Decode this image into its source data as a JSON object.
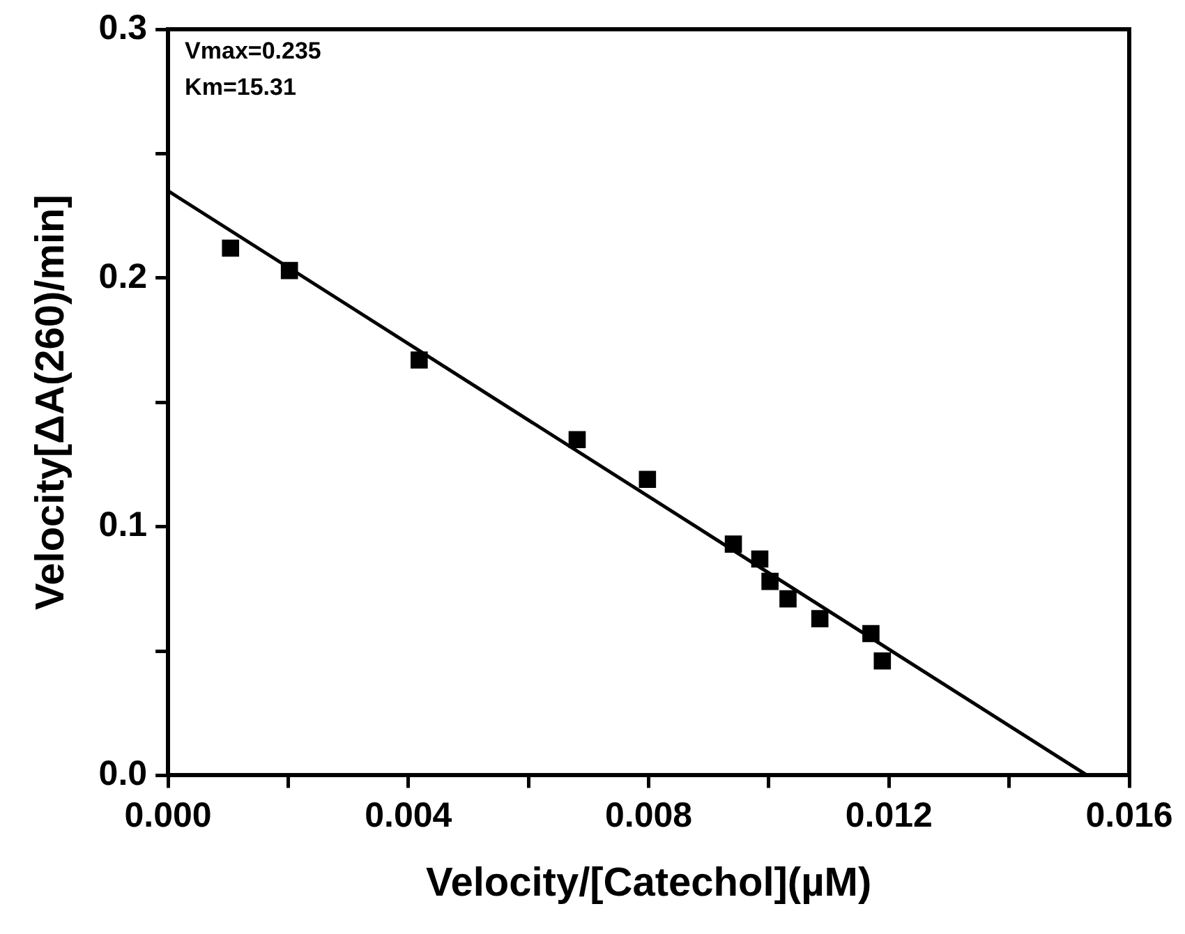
{
  "chart_data": {
    "type": "scatter",
    "xlabel": "Velocity/[Catechol](µM)",
    "ylabel": "Velocity[ΔA(260)/min]",
    "annotations": [
      "Vmax=0.235",
      "Km=15.31"
    ],
    "xlim": [
      0,
      0.016
    ],
    "ylim": [
      0,
      0.3
    ],
    "xticks": [
      {
        "value": 0,
        "label": "0.000"
      },
      {
        "value": 0.002,
        "label": null
      },
      {
        "value": 0.004,
        "label": "0.004"
      },
      {
        "value": 0.006,
        "label": null
      },
      {
        "value": 0.008,
        "label": "0.008"
      },
      {
        "value": 0.01,
        "label": null
      },
      {
        "value": 0.012,
        "label": "0.012"
      },
      {
        "value": 0.014,
        "label": null
      },
      {
        "value": 0.016,
        "label": "0.016"
      }
    ],
    "yticks": [
      {
        "value": 0,
        "label": "0.0"
      },
      {
        "value": 0.05,
        "label": null
      },
      {
        "value": 0.1,
        "label": "0.1"
      },
      {
        "value": 0.15,
        "label": null
      },
      {
        "value": 0.2,
        "label": "0.2"
      },
      {
        "value": 0.25,
        "label": null
      },
      {
        "value": 0.3,
        "label": "0.3"
      }
    ],
    "grid": false,
    "legend": false,
    "series": [
      {
        "marker": "square",
        "color": "#000000",
        "x": [
          0.00104,
          0.00202,
          0.00418,
          0.00681,
          0.00798,
          0.00941,
          0.00985,
          0.01002,
          0.01032,
          0.01085,
          0.0117,
          0.01189
        ],
        "values": [
          0.212,
          0.203,
          0.167,
          0.135,
          0.119,
          0.093,
          0.087,
          0.078,
          0.071,
          0.063,
          0.057,
          0.046
        ]
      },
      {
        "type": "line",
        "marker": "none",
        "color": "#000000",
        "x": [
          0,
          0.0153
        ],
        "values": [
          0.235,
          0
        ]
      }
    ]
  }
}
